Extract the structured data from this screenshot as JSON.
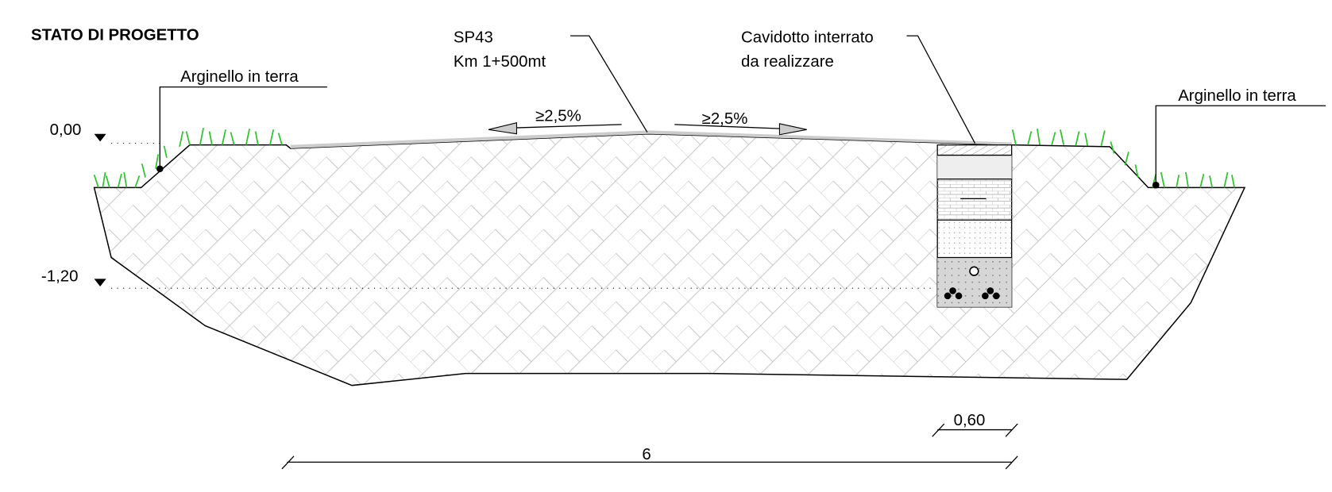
{
  "title": "STATO DI PROGETTO",
  "labels": {
    "arginello_left": "Arginello in terra",
    "arginello_right": "Arginello in terra",
    "road": [
      "SP43",
      "Km 1+500mt"
    ],
    "trench": [
      "Cavidotto interrato",
      "da realizzare"
    ]
  },
  "levels": [
    "0,00",
    "-1,20"
  ],
  "slopes": [
    "≥2,5%",
    "≥2,5%"
  ],
  "dimensions": [
    "0,60",
    "6"
  ]
}
